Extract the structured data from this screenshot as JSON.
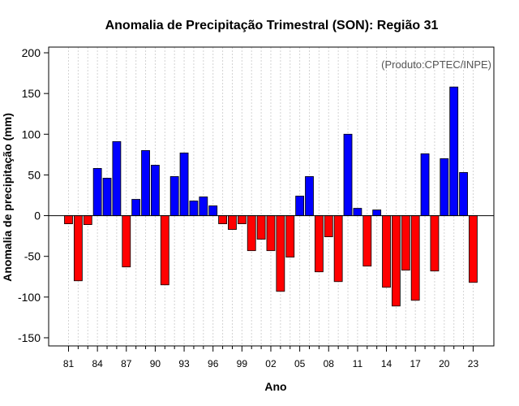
{
  "chart_data": {
    "type": "bar",
    "title": "Anomalia de Precipitação Trimestral (SON): Região 31",
    "xlabel": "Ano",
    "ylabel": "Anomalia de precipitação (mm)",
    "credit": "(Produto:CPTEC/INPE)",
    "ylim": [
      -160,
      207
    ],
    "yticks": [
      -150,
      -100,
      -50,
      0,
      50,
      100,
      150,
      200
    ],
    "x_tick_labels": [
      "81",
      "84",
      "87",
      "90",
      "93",
      "96",
      "99",
      "02",
      "05",
      "08",
      "11",
      "14",
      "17",
      "20",
      "23"
    ],
    "categories": [
      "1981",
      "1982",
      "1983",
      "1984",
      "1985",
      "1986",
      "1987",
      "1988",
      "1989",
      "1990",
      "1991",
      "1992",
      "1993",
      "1994",
      "1995",
      "1996",
      "1997",
      "1998",
      "1999",
      "2000",
      "2001",
      "2002",
      "2003",
      "2004",
      "2005",
      "2006",
      "2007",
      "2008",
      "2009",
      "2010",
      "2011",
      "2012",
      "2013",
      "2014",
      "2015",
      "2016",
      "2017",
      "2018",
      "2019",
      "2020",
      "2021",
      "2022",
      "2023"
    ],
    "values": [
      -10,
      -80,
      -11,
      58,
      46,
      91,
      -63,
      20,
      80,
      62,
      -85,
      48,
      77,
      18,
      23,
      12,
      -10,
      -17,
      -10,
      -43,
      -29,
      -43,
      -93,
      -51,
      24,
      48,
      -69,
      -26,
      -81,
      100,
      9,
      -62,
      7,
      -88,
      -111,
      -67,
      -104,
      76,
      -68,
      70,
      158,
      53,
      -82
    ],
    "colors": {
      "positive": "#0000ff",
      "negative": "#ff0000",
      "grid": "#d3d3d3",
      "axis": "#000000",
      "credit": "#555555"
    },
    "grid": true
  }
}
